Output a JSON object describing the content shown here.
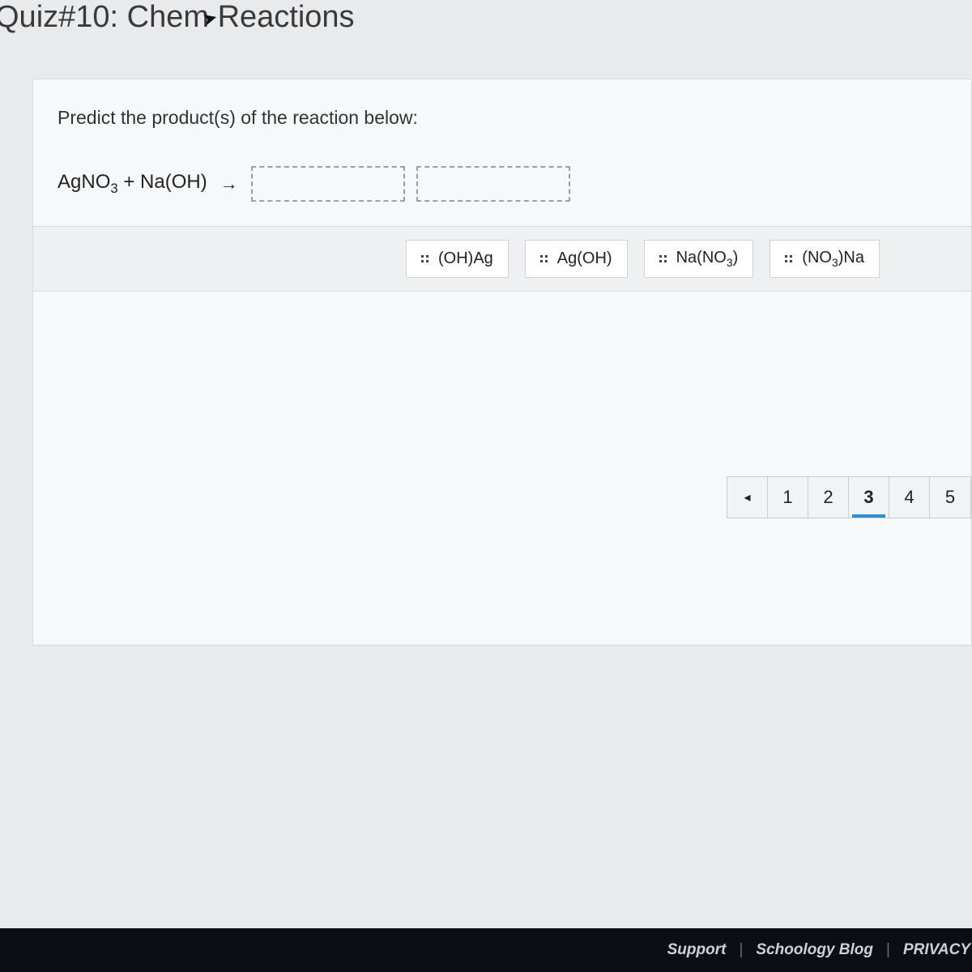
{
  "title": "Quiz#10: Chem Reactions",
  "prompt": "Predict the product(s) of the reaction below:",
  "reaction": {
    "lhs_html": "AgNO<sub>3</sub> + Na(OH)",
    "arrow": "→"
  },
  "answers": [
    {
      "html": "(OH)Ag"
    },
    {
      "html": "Ag(OH)"
    },
    {
      "html": "Na(NO<sub>3</sub>)"
    },
    {
      "html": "(NO<sub>3</sub>)Na"
    }
  ],
  "pager": {
    "prev": "◂",
    "items": [
      "1",
      "2",
      "3",
      "4",
      "5"
    ],
    "current_index": 2
  },
  "footer": {
    "support": "Support",
    "blog": "Schoology Blog",
    "privacy": "PRIVACY",
    "sep": "|"
  },
  "colors": {
    "page_bg": "#e9eaec",
    "card_bg": "#f7f8f9",
    "border": "#d9dbdd",
    "chip_bg": "#ffffff",
    "chip_border": "#cfd3d7",
    "bank_bg": "#eef0f2",
    "pager_bg": "#f2f3f5",
    "pager_border": "#c9ccce",
    "accent": "#2f8fd6",
    "footer_bg": "#0d0e13",
    "footer_text": "#cfd1d6"
  }
}
